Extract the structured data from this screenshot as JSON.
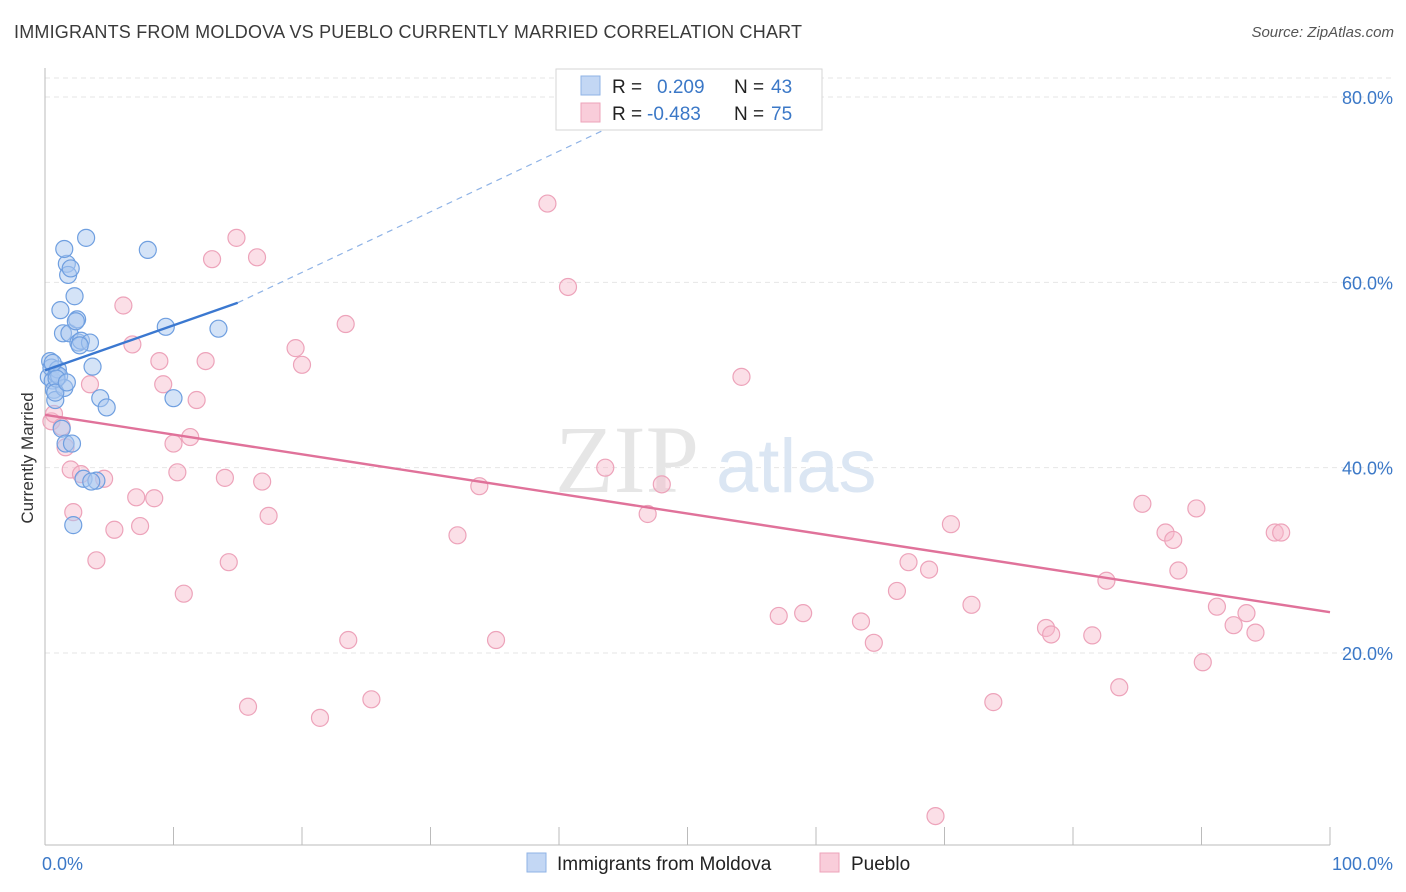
{
  "header": {
    "title": "IMMIGRANTS FROM MOLDOVA VS PUEBLO CURRENTLY MARRIED CORRELATION CHART",
    "source": "Source: ZipAtlas.com"
  },
  "watermark": {
    "zip": "ZIP",
    "atlas": "atlas"
  },
  "legend": {
    "rows": [
      {
        "r_label": "R =",
        "r_value": "0.209",
        "n_label": "N =",
        "n_value": "43",
        "color": "#a9c7f0"
      },
      {
        "r_label": "R =",
        "r_value": "-0.483",
        "n_label": "N =",
        "n_value": "75",
        "color": "#f6b8c9"
      }
    ]
  },
  "chart_data": {
    "type": "scatter",
    "title": "IMMIGRANTS FROM MOLDOVA VS PUEBLO CURRENTLY MARRIED CORRELATION CHART",
    "xlabel": "",
    "ylabel": "Currently Married",
    "xlim": [
      0,
      100
    ],
    "ylim": [
      0,
      82
    ],
    "x_tick_labels": [
      "0.0%",
      "100.0%"
    ],
    "y_ticks": [
      20,
      40,
      60,
      80
    ],
    "y_tick_labels": [
      "20.0%",
      "40.0%",
      "60.0%",
      "80.0%"
    ],
    "grid": true,
    "legend_position": "top-center",
    "colors": {
      "moldova": "#3b78d0",
      "pueblo": "#e0729a"
    },
    "series": [
      {
        "name": "Immigrants from Moldova",
        "color": "#3b78d0",
        "trend": {
          "x": [
            0,
            15
          ],
          "y": [
            50.5,
            57.8
          ],
          "extend_to": [
            52,
            82
          ]
        },
        "x": [
          0.3,
          0.4,
          0.5,
          0.6,
          0.7,
          0.8,
          0.9,
          1.0,
          1.1,
          1.2,
          1.3,
          1.4,
          1.5,
          1.6,
          1.7,
          1.8,
          1.9,
          2.0,
          2.1,
          2.2,
          2.3,
          2.5,
          2.6,
          2.8,
          3.0,
          3.2,
          3.5,
          3.7,
          4.0,
          4.3,
          0.6,
          0.9,
          1.5,
          2.4,
          2.7,
          3.6,
          4.8,
          8.0,
          9.4,
          10.0,
          13.5,
          0.8,
          1.7
        ],
        "y": [
          49.8,
          51.5,
          50.8,
          49.4,
          48.4,
          47.3,
          50.1,
          50.6,
          49.9,
          57.0,
          44.2,
          54.5,
          48.6,
          42.6,
          62.0,
          60.8,
          54.5,
          61.5,
          42.6,
          33.8,
          58.5,
          56.0,
          53.5,
          53.7,
          38.8,
          64.8,
          53.5,
          50.9,
          38.6,
          47.5,
          51.3,
          49.6,
          63.6,
          55.8,
          53.2,
          38.5,
          46.5,
          63.5,
          55.2,
          47.5,
          55.0,
          48.1,
          49.2
        ]
      },
      {
        "name": "Pueblo",
        "color": "#e0729a",
        "trend": {
          "x": [
            0,
            100
          ],
          "y": [
            45.7,
            24.4
          ]
        },
        "x": [
          0.5,
          0.7,
          1.3,
          1.6,
          2.0,
          2.2,
          2.8,
          3.5,
          4.0,
          4.6,
          5.4,
          6.1,
          6.8,
          7.1,
          7.4,
          8.5,
          8.9,
          9.2,
          10.0,
          10.3,
          10.8,
          11.3,
          11.8,
          12.5,
          13.0,
          14.0,
          14.3,
          14.9,
          15.8,
          16.5,
          16.9,
          17.4,
          19.5,
          20.0,
          21.4,
          23.4,
          23.6,
          25.4,
          32.1,
          33.8,
          35.1,
          39.1,
          40.7,
          43.6,
          46.9,
          48.0,
          54.2,
          57.1,
          59.0,
          63.5,
          64.5,
          66.3,
          67.2,
          68.8,
          69.3,
          70.5,
          72.1,
          73.8,
          77.9,
          78.3,
          81.5,
          82.6,
          83.6,
          85.4,
          87.2,
          87.8,
          88.2,
          89.6,
          90.1,
          91.2,
          92.5,
          93.5,
          94.2,
          95.7,
          96.2
        ],
        "y": [
          45.0,
          45.8,
          44.4,
          42.2,
          39.8,
          35.2,
          39.3,
          49.0,
          30.0,
          38.8,
          33.3,
          57.5,
          53.3,
          36.8,
          33.7,
          36.7,
          51.5,
          49.0,
          42.6,
          39.5,
          26.4,
          43.3,
          47.3,
          51.5,
          62.5,
          38.9,
          29.8,
          64.8,
          14.2,
          62.7,
          38.5,
          34.8,
          52.9,
          51.1,
          13.0,
          55.5,
          21.4,
          15.0,
          32.7,
          38.0,
          21.4,
          68.5,
          59.5,
          40.0,
          35.0,
          38.2,
          49.8,
          24.0,
          24.3,
          23.4,
          21.1,
          26.7,
          29.8,
          29.0,
          2.4,
          33.9,
          25.2,
          14.7,
          22.7,
          22.0,
          21.9,
          27.8,
          16.3,
          36.1,
          33.0,
          32.2,
          28.9,
          35.6,
          19.0,
          25.0,
          23.0,
          24.3,
          22.2,
          33.0,
          33.0
        ]
      }
    ]
  }
}
